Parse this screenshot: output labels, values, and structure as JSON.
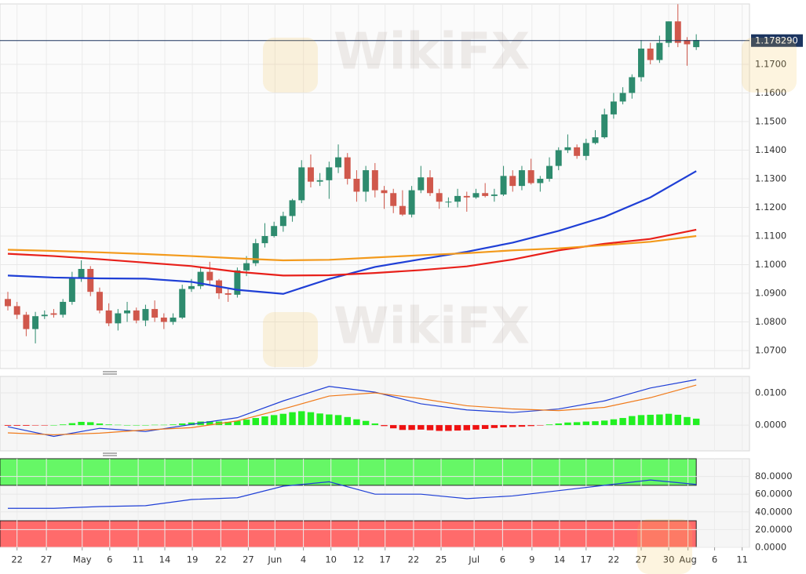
{
  "watermark": "WikiFX",
  "chart_data": [
    {
      "type": "candlestick",
      "open": [
        1.088,
        1.0855,
        1.0825,
        1.0775,
        1.082,
        1.083,
        1.0825,
        1.087,
        1.0955,
        1.0985,
        1.0905,
        1.084,
        1.0795,
        1.083,
        1.084,
        1.0805,
        1.0845,
        1.0815,
        1.08,
        1.0815,
        1.0915,
        1.0925,
        1.0975,
        1.0945,
        1.09,
        1.0895,
        1.098,
        1.1005,
        1.1075,
        1.11,
        1.1135,
        1.117,
        1.1225,
        1.134,
        1.129,
        1.1295,
        1.134,
        1.1375,
        1.13,
        1.1255,
        1.133,
        1.126,
        1.125,
        1.1205,
        1.1175,
        1.126,
        1.1305,
        1.125,
        1.122,
        1.122,
        1.124,
        1.1235,
        1.125,
        1.124,
        1.1245,
        1.131,
        1.1275,
        1.133,
        1.1285,
        1.13,
        1.1345,
        1.14,
        1.141,
        1.138,
        1.1425,
        1.1445,
        1.1525,
        1.157,
        1.16,
        1.1655,
        1.1755,
        1.1715,
        1.1775,
        1.185,
        1.1785,
        1.176
      ],
      "high": [
        1.0905,
        1.087,
        1.0835,
        1.0835,
        1.084,
        1.0845,
        1.088,
        1.0975,
        1.1015,
        1.0995,
        1.092,
        1.0865,
        1.0845,
        1.087,
        1.085,
        1.086,
        1.0875,
        1.083,
        1.083,
        1.093,
        1.095,
        1.099,
        1.101,
        1.095,
        1.0915,
        1.099,
        1.103,
        1.109,
        1.1145,
        1.115,
        1.1185,
        1.123,
        1.1365,
        1.1385,
        1.132,
        1.136,
        1.142,
        1.139,
        1.133,
        1.1345,
        1.1355,
        1.1275,
        1.1265,
        1.126,
        1.1275,
        1.1345,
        1.133,
        1.1265,
        1.1235,
        1.1265,
        1.1255,
        1.1265,
        1.1285,
        1.1265,
        1.1345,
        1.133,
        1.1345,
        1.137,
        1.131,
        1.1375,
        1.141,
        1.1455,
        1.142,
        1.144,
        1.147,
        1.1545,
        1.16,
        1.162,
        1.1665,
        1.1785,
        1.1775,
        1.18,
        1.185,
        1.191,
        1.1795,
        1.1805
      ],
      "low": [
        1.084,
        1.081,
        1.075,
        1.0725,
        1.081,
        1.0815,
        1.0815,
        1.086,
        1.094,
        1.089,
        1.083,
        1.0785,
        1.077,
        1.08,
        1.0795,
        1.0785,
        1.08,
        1.0775,
        1.079,
        1.081,
        1.0905,
        1.0915,
        1.093,
        1.088,
        1.087,
        1.0885,
        1.096,
        1.0995,
        1.106,
        1.1095,
        1.1115,
        1.115,
        1.1215,
        1.127,
        1.1275,
        1.123,
        1.132,
        1.128,
        1.122,
        1.122,
        1.1235,
        1.1195,
        1.118,
        1.117,
        1.1165,
        1.125,
        1.124,
        1.1195,
        1.12,
        1.12,
        1.1185,
        1.123,
        1.1235,
        1.122,
        1.124,
        1.1255,
        1.126,
        1.128,
        1.1255,
        1.129,
        1.133,
        1.139,
        1.137,
        1.1365,
        1.142,
        1.144,
        1.151,
        1.156,
        1.158,
        1.164,
        1.17,
        1.1705,
        1.176,
        1.176,
        1.1695,
        1.175
      ],
      "close": [
        1.0855,
        1.0825,
        1.0775,
        1.082,
        1.0825,
        1.0825,
        1.087,
        1.0955,
        1.0985,
        1.0905,
        1.084,
        1.0795,
        1.083,
        1.084,
        1.0805,
        1.0845,
        1.0815,
        1.08,
        1.0815,
        1.0915,
        1.0925,
        1.0975,
        1.0945,
        1.09,
        1.0895,
        1.098,
        1.1005,
        1.1075,
        1.11,
        1.1135,
        1.117,
        1.1225,
        1.134,
        1.129,
        1.1295,
        1.134,
        1.1375,
        1.13,
        1.1255,
        1.133,
        1.126,
        1.125,
        1.1205,
        1.1175,
        1.126,
        1.1305,
        1.125,
        1.122,
        1.122,
        1.124,
        1.1235,
        1.125,
        1.124,
        1.1245,
        1.131,
        1.1275,
        1.133,
        1.1285,
        1.13,
        1.1345,
        1.14,
        1.141,
        1.138,
        1.1425,
        1.1445,
        1.1525,
        1.157,
        1.16,
        1.1655,
        1.1755,
        1.1715,
        1.1775,
        1.185,
        1.1775,
        1.177,
        1.1785
      ],
      "up_color": "#2e8b6e",
      "down_color": "#d0584c",
      "series": [
        {
          "color": "#1f3fd6",
          "x": [
            0,
            5,
            10,
            15,
            20,
            25,
            30,
            35,
            40,
            45,
            50,
            55,
            60,
            65,
            70,
            75
          ],
          "values": [
            1.0962,
            1.0955,
            1.0952,
            1.0951,
            1.094,
            1.0912,
            1.0898,
            1.095,
            1.0992,
            1.1019,
            1.1045,
            1.1077,
            1.1118,
            1.1167,
            1.1235,
            1.1327
          ]
        },
        {
          "color": "#e8201a",
          "x": [
            0,
            5,
            10,
            15,
            20,
            25,
            30,
            35,
            40,
            45,
            50,
            55,
            60,
            65,
            70,
            75
          ],
          "values": [
            1.1038,
            1.103,
            1.1019,
            1.1007,
            1.0995,
            1.0975,
            1.0962,
            1.0963,
            1.0971,
            1.0981,
            1.0994,
            1.1018,
            1.105,
            1.1073,
            1.109,
            1.1122
          ]
        },
        {
          "color": "#f39a1c",
          "x": [
            0,
            5,
            10,
            15,
            20,
            25,
            30,
            35,
            40,
            45,
            50,
            55,
            60,
            65,
            70,
            75
          ],
          "values": [
            1.1052,
            1.1048,
            1.1043,
            1.1037,
            1.103,
            1.1022,
            1.1015,
            1.1017,
            1.1025,
            1.1033,
            1.104,
            1.105,
            1.1057,
            1.1068,
            1.108,
            1.11
          ]
        }
      ],
      "last_price": {
        "value": 1.17829,
        "label": "1.178290"
      },
      "xlim": [
        -0.855,
        80.8
      ],
      "ylim": [
        1.0637,
        1.1911
      ],
      "yticks": [
        {
          "value": 1.07,
          "label": "1.0700"
        },
        {
          "value": 1.08,
          "label": "1.0800"
        },
        {
          "value": 1.09,
          "label": "1.0900"
        },
        {
          "value": 1.1,
          "label": "1.1000"
        },
        {
          "value": 1.11,
          "label": "1.1100"
        },
        {
          "value": 1.12,
          "label": "1.1200"
        },
        {
          "value": 1.13,
          "label": "1.1300"
        },
        {
          "value": 1.14,
          "label": "1.1400"
        },
        {
          "value": 1.15,
          "label": "1.1500"
        },
        {
          "value": 1.16,
          "label": "1.1600"
        },
        {
          "value": 1.17,
          "label": "1.1700"
        }
      ],
      "grid": true
    },
    {
      "type": "macd",
      "histogram": [
        -0.0002,
        -0.0002,
        -0.0002,
        -0.0001,
        -0.0001,
        0.0,
        0.0002,
        0.0006,
        0.001,
        0.0009,
        0.0005,
        0.0002,
        0.0001,
        0.0,
        0.0,
        0.0,
        0.0001,
        0.0001,
        0.0002,
        0.0005,
        0.0008,
        0.0011,
        0.0012,
        0.0011,
        0.001,
        0.0013,
        0.0017,
        0.0022,
        0.0027,
        0.0031,
        0.0035,
        0.004,
        0.0043,
        0.004,
        0.0036,
        0.0033,
        0.0031,
        0.0025,
        0.0018,
        0.0013,
        0.0005,
        -0.0003,
        -0.001,
        -0.0015,
        -0.0015,
        -0.0014,
        -0.0016,
        -0.0018,
        -0.0018,
        -0.0017,
        -0.0016,
        -0.0014,
        -0.0012,
        -0.0009,
        -0.0007,
        -0.0006,
        -0.0005,
        -0.0003,
        -0.0001,
        0.0002,
        0.0005,
        0.0008,
        0.0009,
        0.0011,
        0.0012,
        0.0014,
        0.0018,
        0.0022,
        0.0028,
        0.0031,
        0.0032,
        0.0033,
        0.0035,
        0.0032,
        0.0025,
        0.002
      ],
      "positive_color": "#22f022",
      "negative_color": "#ee1111",
      "series": [
        {
          "color": "#1f3fd6",
          "x": [
            0,
            5,
            10,
            15,
            20,
            25,
            30,
            35,
            40,
            45,
            50,
            55,
            60,
            65,
            70,
            75
          ],
          "values": [
            -0.0005,
            -0.0035,
            -0.001,
            -0.002,
            0.0002,
            0.0023,
            0.0075,
            0.012,
            0.0102,
            0.0066,
            0.0047,
            0.0039,
            0.005,
            0.0075,
            0.0115,
            0.0141
          ]
        },
        {
          "color": "#f07a1a",
          "x": [
            0,
            5,
            10,
            15,
            20,
            25,
            30,
            35,
            40,
            45,
            50,
            55,
            60,
            65,
            70,
            75
          ],
          "values": [
            -0.0024,
            -0.003,
            -0.0025,
            -0.0015,
            -0.0008,
            0.0013,
            0.005,
            0.009,
            0.01,
            0.0082,
            0.006,
            0.005,
            0.0045,
            0.0055,
            0.0085,
            0.0124
          ]
        }
      ],
      "xlim": [
        -0.855,
        80.8
      ],
      "ylim": [
        -0.008,
        0.0151
      ],
      "yticks": [
        {
          "value": 0,
          "label": "0.0000"
        },
        {
          "value": 0.01,
          "label": "0.0100"
        }
      ],
      "grid": true
    },
    {
      "type": "rsi",
      "series": [
        {
          "color": "#1f3fd6",
          "x": [
            0,
            5,
            10,
            15,
            20,
            25,
            30,
            35,
            40,
            45,
            50,
            55,
            60,
            65,
            70,
            75
          ],
          "values": [
            44,
            44,
            46,
            47,
            54,
            56,
            69,
            74,
            60,
            60,
            55,
            58,
            64,
            70,
            76,
            71
          ]
        }
      ],
      "bands": [
        {
          "from": 70,
          "to": 100,
          "color": "#66f766"
        },
        {
          "from": 0,
          "to": 30,
          "color": "#ff6b6b"
        }
      ],
      "xlim": [
        -0.855,
        80.8
      ],
      "ylim": [
        0,
        100
      ],
      "yticks": [
        {
          "value": 0,
          "label": "0.0000"
        },
        {
          "value": 20,
          "label": "20.0000"
        },
        {
          "value": 40,
          "label": "40.0000"
        },
        {
          "value": 60,
          "label": "60.0000"
        },
        {
          "value": 80,
          "label": "80.0000"
        }
      ],
      "xticks": [
        {
          "value": 1.0,
          "label": "22"
        },
        {
          "value": 4.2,
          "label": "27"
        },
        {
          "value": 8.1,
          "label": "May"
        },
        {
          "value": 11.1,
          "label": "6"
        },
        {
          "value": 14.2,
          "label": "11"
        },
        {
          "value": 17.1,
          "label": "14"
        },
        {
          "value": 20.1,
          "label": "19"
        },
        {
          "value": 23.2,
          "label": "22"
        },
        {
          "value": 26.2,
          "label": "27"
        },
        {
          "value": 29.1,
          "label": "Jun"
        },
        {
          "value": 32.2,
          "label": "4"
        },
        {
          "value": 35.2,
          "label": "10"
        },
        {
          "value": 38.2,
          "label": "12"
        },
        {
          "value": 41.1,
          "label": "17"
        },
        {
          "value": 44.2,
          "label": "22"
        },
        {
          "value": 47.2,
          "label": "25"
        },
        {
          "value": 50.8,
          "label": "Jul"
        },
        {
          "value": 53.9,
          "label": "6"
        },
        {
          "value": 57.1,
          "label": "9"
        },
        {
          "value": 60.1,
          "label": "14"
        },
        {
          "value": 63.0,
          "label": "17"
        },
        {
          "value": 66.0,
          "label": "22"
        },
        {
          "value": 69.0,
          "label": "27"
        },
        {
          "value": 72.0,
          "label": "30"
        },
        {
          "value": 74.1,
          "label": "Aug"
        },
        {
          "value": 77.0,
          "label": "6"
        },
        {
          "value": 80.0,
          "label": "11"
        }
      ],
      "grid": true
    }
  ]
}
